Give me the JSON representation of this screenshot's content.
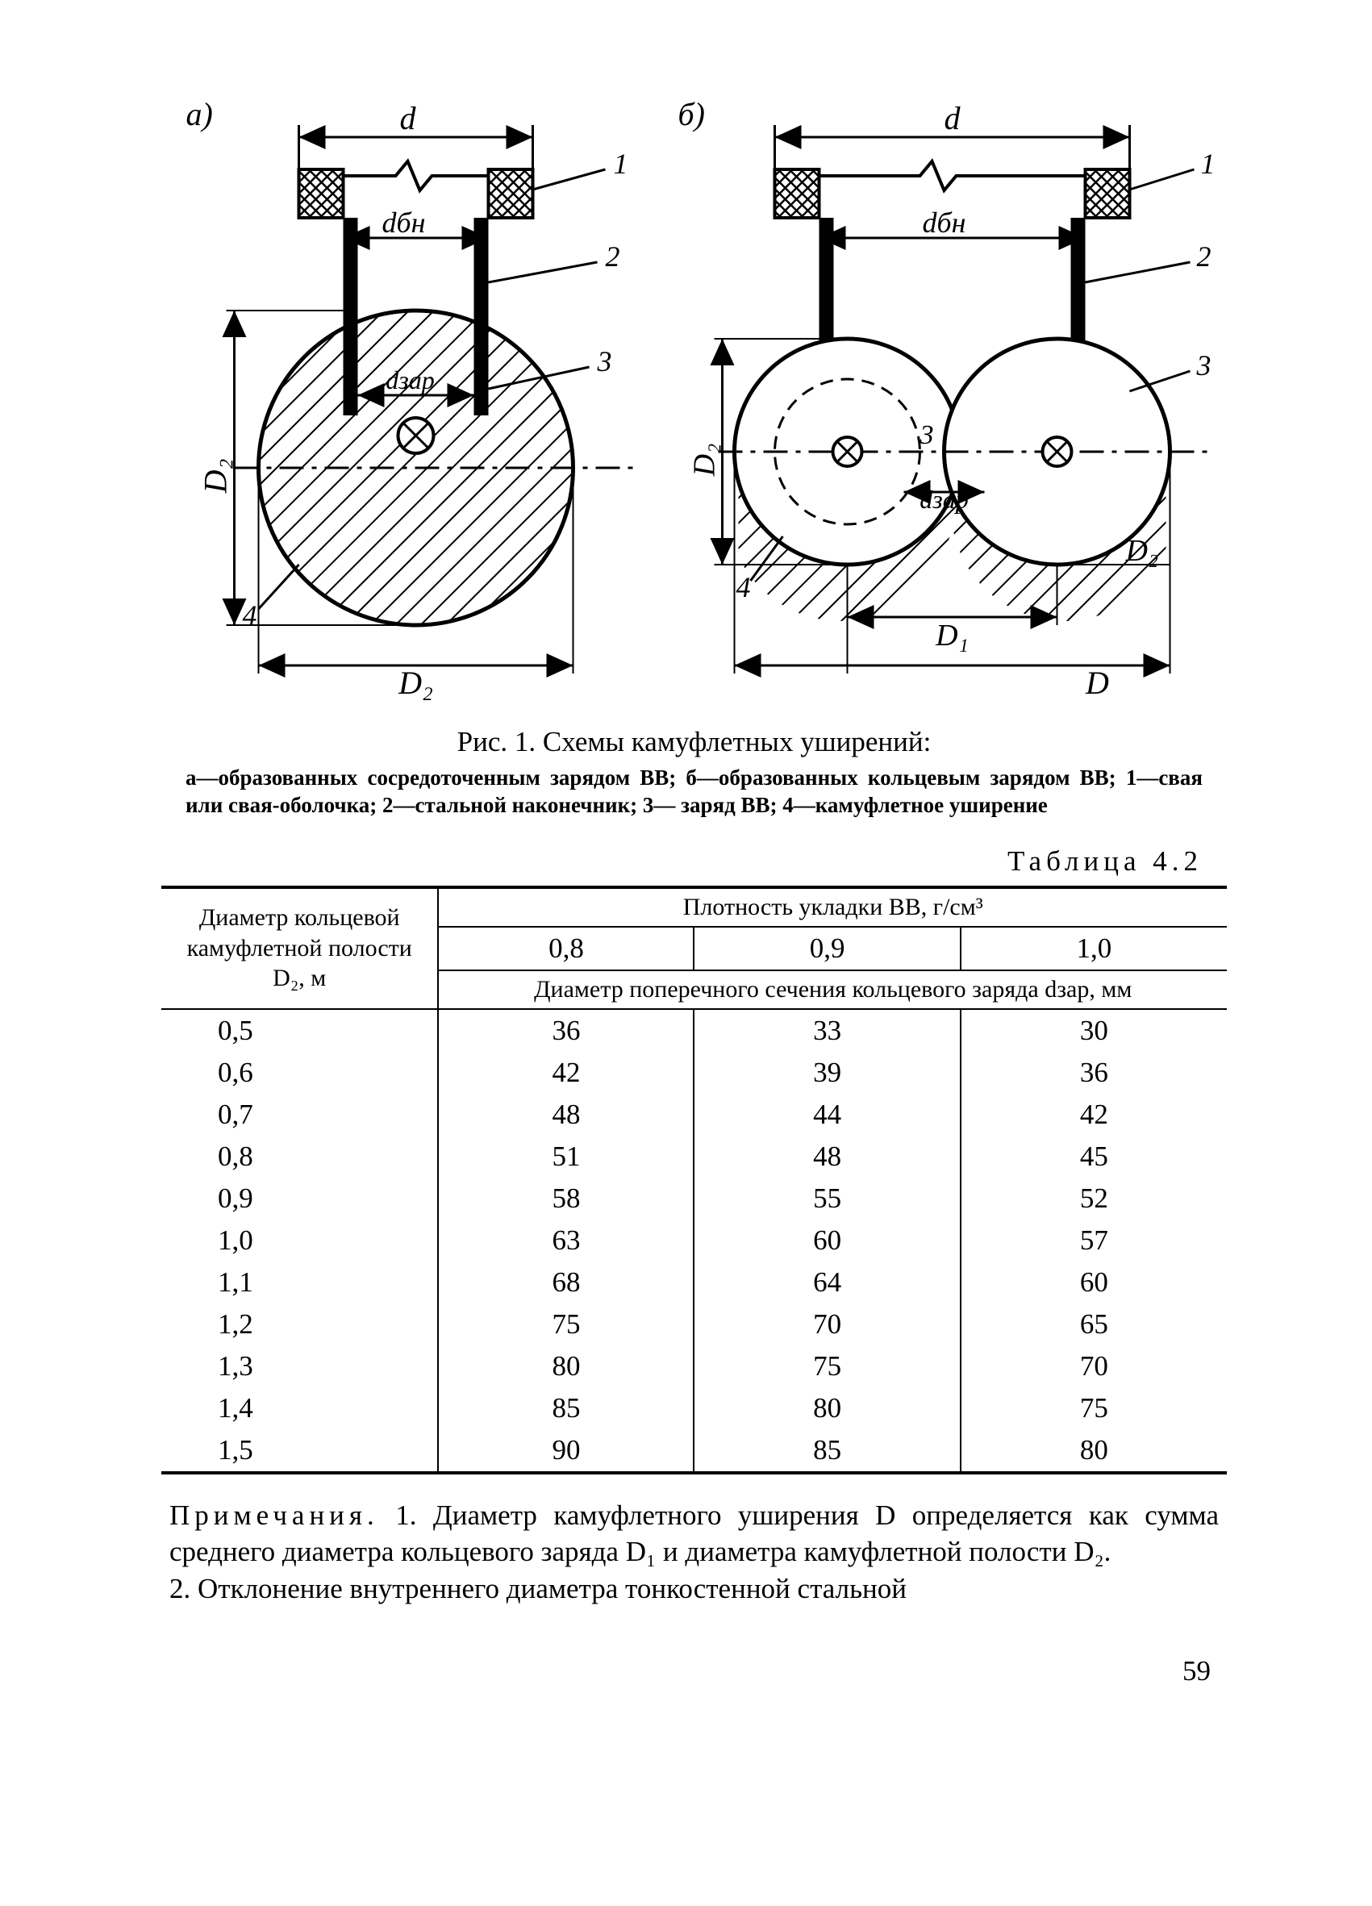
{
  "colors": {
    "background": "#ffffff",
    "ink": "#000000"
  },
  "figure": {
    "panel_a_label": "а)",
    "panel_b_label": "б)",
    "callout_1": "1",
    "callout_2": "2",
    "callout_3": "3",
    "callout_4": "4",
    "dim_d_small": "d",
    "dim_d_bn": "dбн",
    "dim_d_zar": "dзар",
    "dim_D2": "D₂",
    "dim_D1": "D₁",
    "dim_D": "D",
    "caption_title": "Рис. 1. Схемы камуфлетных уширений:",
    "caption_sub": "а—образованных сосредоточенным зарядом ВВ; б—образованных кольцевым зарядом ВВ; 1—свая или свая-оболочка; 2—стальной наконечник; 3— заряд ВВ; 4—камуфлетное уширение"
  },
  "table": {
    "label": "Таблица 4.2",
    "row_header": "Диаметр кольцевой камуфлетной полости D₂, м",
    "density_header": "Плотность укладки ВВ, г/см³",
    "density_cols": [
      "0,8",
      "0,9",
      "1,0"
    ],
    "sub_header": "Диаметр поперечного сечения кольцевого заряда dзар, мм",
    "col0": [
      "0,5",
      "0,6",
      "0,7",
      "0,8",
      "0,9",
      "1,0",
      "1,1",
      "1,2",
      "1,3",
      "1,4",
      "1,5"
    ],
    "col1": [
      "36",
      "42",
      "48",
      "51",
      "58",
      "63",
      "68",
      "75",
      "80",
      "85",
      "90"
    ],
    "col2": [
      "33",
      "39",
      "44",
      "48",
      "55",
      "60",
      "64",
      "70",
      "75",
      "80",
      "85"
    ],
    "col3": [
      "30",
      "36",
      "42",
      "45",
      "52",
      "57",
      "60",
      "65",
      "70",
      "75",
      "80"
    ],
    "fontsize": 35,
    "header_fontsize": 30,
    "border_thick": 4,
    "border_thin": 2
  },
  "notes": {
    "lead": "Примечания.",
    "n1": " 1. Диаметр камуфлетного уширения D определяется как сумма среднего диаметра кольцевого заряда D₁ и диаметра камуфлетной полости D₂.",
    "n2": "2. Отклонение внутреннего диаметра тонкостенной стальной"
  },
  "page_number": "59"
}
